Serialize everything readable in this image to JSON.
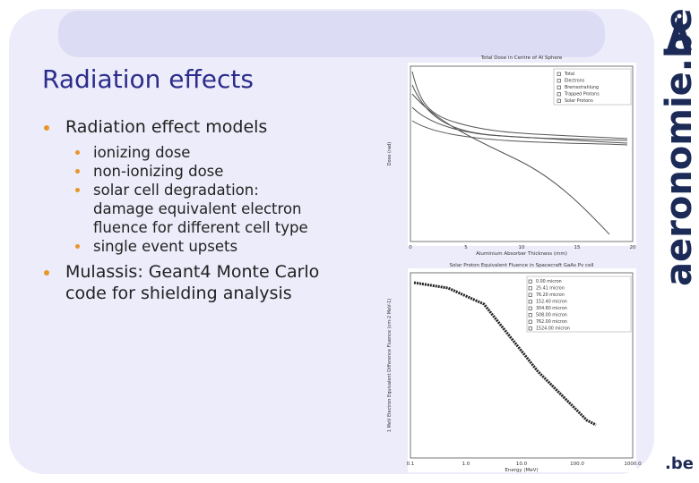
{
  "header": {
    "title": "Radiation effects"
  },
  "bullets": [
    {
      "text": "Radiation effect models",
      "items": [
        "ionizing dose",
        "non-ionizing dose",
        "solar cell degradation: damage equivalent electron fluence for different cell type",
        "single event upsets"
      ]
    },
    {
      "text": "Mulassis: Geant4 Monte Carlo code for shielding analysis"
    }
  ],
  "figures": [
    {
      "title": "Total Dose in Centre of Al Sphere",
      "x_label": "Aluminium Absorber Thickness (mm)",
      "y_label": "Dose (rad)",
      "x_ticks": [
        "0",
        "5",
        "10",
        "15",
        "20"
      ],
      "legend": [
        "Total",
        "Electrons",
        "Bremsstrahlung",
        "Trapped Protons",
        "Solar Protons"
      ]
    },
    {
      "title": "Solar Proton Equivalent Fluence in Spacecraft GaAs Pv cell",
      "x_label": "Energy (MeV)",
      "y_label": "1 MeV Electron Equivalent Difference Fluence (cm-2 MeV-1)",
      "x_ticks": [
        "0.1",
        "1.0",
        "10.0",
        "100.0",
        "1000.0"
      ],
      "legend": [
        "0.00 micron",
        "25.41 micron",
        "76.20 micron",
        "152.40 micron",
        "304.80 micron",
        "508.00 micron",
        "762.00 micron",
        "1524.00 micron"
      ]
    }
  ],
  "branding": {
    "site": "aeronomie.be",
    "domain": ".be"
  }
}
